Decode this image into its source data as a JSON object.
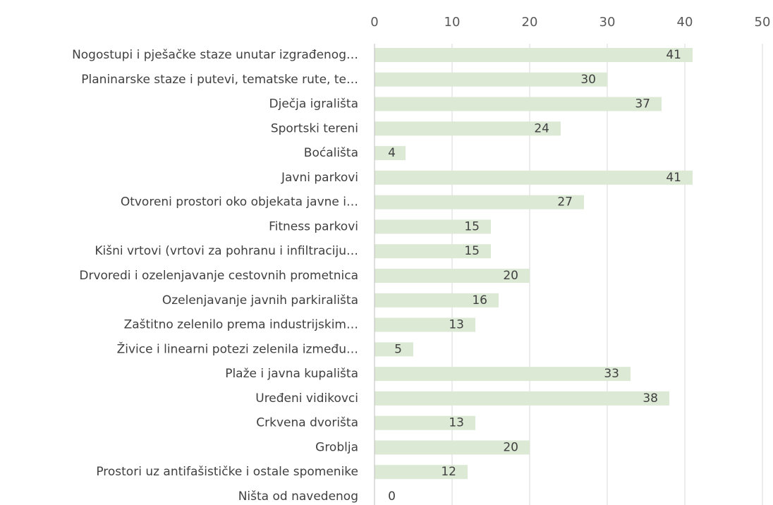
{
  "chart_data": {
    "type": "bar",
    "orientation": "horizontal",
    "categories": [
      "Nogostupi i pješačke staze unutar izgrađenog…",
      "Planinarske staze i putevi, tematske rute, te…",
      "Dječja igrališta",
      "Sportski tereni",
      "Boćališta",
      "Javni parkovi",
      "Otvoreni prostori oko objekata javne i…",
      "Fitness parkovi",
      "Kišni vrtovi (vrtovi za pohranu i infiltraciju…",
      "Drvoredi i ozelenjavanje cestovnih prometnica",
      "Ozelenjavanje javnih parkirališta",
      "Zaštitno zelenilo prema industrijskim…",
      "Živice i linearni potezi zelenila između…",
      "Plaže i javna kupališta",
      "Uređeni vidikovci",
      "Crkvena dvorišta",
      "Groblja",
      "Prostori uz antifašističke i ostale spomenike",
      "Ništa od navedenog"
    ],
    "values": [
      41,
      30,
      37,
      24,
      4,
      41,
      27,
      15,
      15,
      20,
      16,
      13,
      5,
      33,
      38,
      13,
      20,
      12,
      0
    ],
    "color": "#dce9d5",
    "xlim": [
      0,
      50
    ],
    "xticks": [
      0,
      10,
      20,
      30,
      40,
      50
    ],
    "grid": true
  }
}
